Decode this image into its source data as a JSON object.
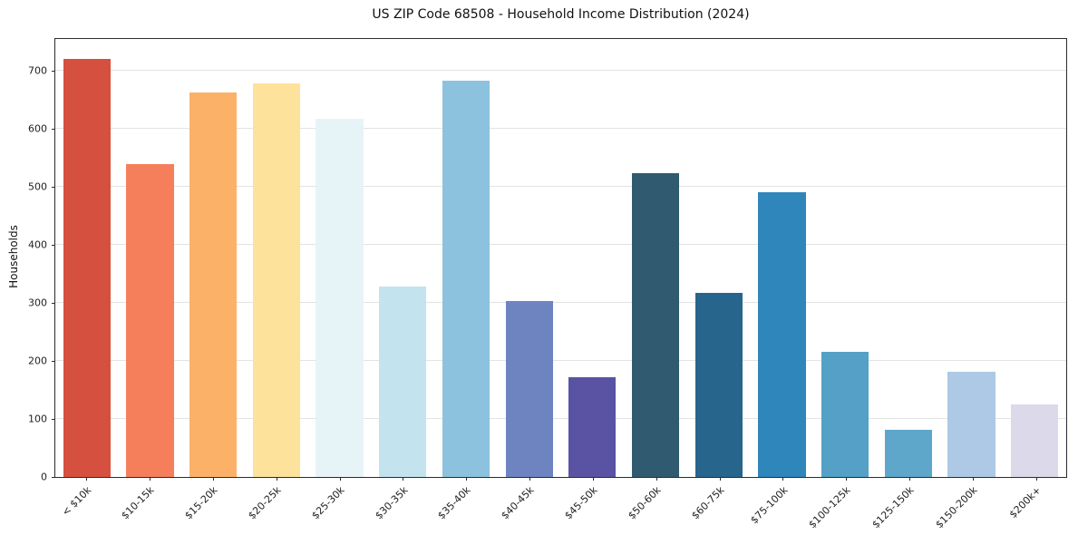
{
  "chart_data": {
    "type": "bar",
    "title": "US ZIP Code 68508 - Household Income Distribution (2024)",
    "xlabel": "",
    "ylabel": "Households",
    "categories": [
      "< $10k",
      "$10-15k",
      "$15-20k",
      "$20-25k",
      "$25-30k",
      "$30-35k",
      "$35-40k",
      "$40-45k",
      "$45-50k",
      "$50-60k",
      "$60-75k",
      "$75-100k",
      "$100-125k",
      "$125-150k",
      "$150-200k",
      "$200k+"
    ],
    "values": [
      720,
      540,
      663,
      678,
      618,
      328,
      683,
      303,
      172,
      524,
      318,
      491,
      215,
      82,
      181,
      125
    ],
    "bar_colors": [
      "#d6503f",
      "#f57e5b",
      "#fbb268",
      "#fde29b",
      "#e7f4f7",
      "#c3e4ee",
      "#8cc2de",
      "#6d84c1",
      "#5a53a4",
      "#2f5a70",
      "#27658d",
      "#2f86bb",
      "#54a0c6",
      "#5ea7cb",
      "#adc9e5",
      "#dcd9ea"
    ],
    "ylim": [
      0,
      755
    ],
    "yticks": [
      0,
      100,
      200,
      300,
      400,
      500,
      600,
      700
    ],
    "grid": "horizontal",
    "legend": "none",
    "plot_bg": "#ffffff",
    "gridline_color": "#e3e3e3"
  }
}
